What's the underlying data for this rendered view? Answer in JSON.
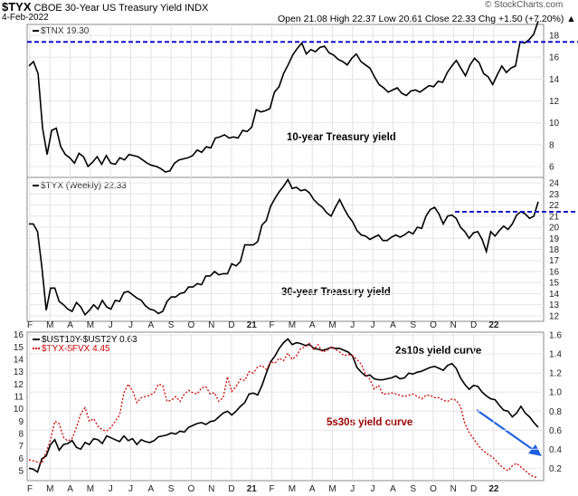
{
  "header": {
    "symbol": "$TYX",
    "name": "CBOE 30-Year US Treasury Yield INDX",
    "date": "4-Feb-2022",
    "ohlc": "Open 21.08  High 22.37  Low 20.61  Close 22.33  Chg +1.50 (+7.20%) ▲",
    "brand": "© StockCharts.com"
  },
  "colors": {
    "price": "#000000",
    "dashed": "#0000cc",
    "red": "#cc0000",
    "arrow": "#1f5fe0"
  },
  "x_axis": {
    "labels": [
      "F",
      "M",
      "A",
      "M",
      "J",
      "J",
      "A",
      "S",
      "O",
      "N",
      "D",
      "21",
      "F",
      "M",
      "A",
      "M",
      "J",
      "J",
      "A",
      "S",
      "O",
      "N",
      "D",
      "22"
    ]
  },
  "chart_data": [
    {
      "type": "line",
      "legend": "$TNX 19.30",
      "title": "10-year Treasury yield",
      "ylim": [
        5,
        19
      ],
      "yticks": [
        6,
        8,
        10,
        12,
        14,
        16,
        18
      ],
      "reference_line": 17.4,
      "series": [
        {
          "name": "$TNX",
          "values": [
            15.2,
            15.6,
            14.5,
            9.5,
            7.1,
            9.3,
            9.5,
            7.8,
            7.1,
            6.8,
            6.3,
            7.2,
            6.9,
            6.0,
            6.4,
            6.9,
            6.2,
            7.0,
            6.3,
            6.2,
            6.8,
            6.6,
            7.1,
            7.0,
            6.9,
            6.6,
            6.3,
            6.1,
            6.0,
            5.8,
            5.5,
            5.6,
            6.3,
            6.6,
            6.7,
            6.8,
            7.0,
            7.5,
            7.3,
            7.8,
            7.7,
            8.6,
            8.7,
            8.9,
            8.6,
            8.7,
            8.6,
            9.3,
            9.2,
            9.6,
            11.2,
            11.0,
            11.1,
            11.3,
            12.8,
            13.3,
            14.5,
            15.3,
            16.2,
            16.8,
            17.3,
            16.3,
            16.7,
            16.5,
            16.9,
            17.0,
            16.4,
            16.2,
            15.8,
            15.6,
            15.3,
            15.9,
            16.3,
            15.6,
            15.3,
            15.0,
            14.2,
            13.5,
            13.2,
            12.8,
            13.0,
            13.2,
            12.7,
            12.5,
            12.9,
            13.0,
            12.8,
            13.1,
            13.4,
            13.3,
            13.8,
            13.7,
            14.6,
            15.2,
            15.7,
            15.0,
            14.3,
            15.3,
            15.9,
            15.5,
            14.5,
            14.2,
            13.5,
            14.4,
            15.2,
            14.6,
            15.0,
            15.2,
            17.4,
            17.3,
            17.6,
            18.1,
            19.3
          ]
        }
      ]
    },
    {
      "type": "line",
      "legend": "$TYX (Weekly) 22.33",
      "title": "30-year Treasury yield",
      "ylim": [
        11.5,
        24.5
      ],
      "yticks": [
        12,
        13,
        14,
        15,
        16,
        17,
        18,
        19,
        20,
        21,
        22,
        23,
        24
      ],
      "reference_line": 21.4,
      "series": [
        {
          "name": "$TYX",
          "values": [
            20.3,
            20.3,
            19.6,
            16.4,
            12.5,
            14.5,
            14.5,
            13.3,
            13.0,
            12.6,
            12.4,
            13.2,
            12.8,
            12.1,
            12.5,
            13.0,
            12.6,
            13.4,
            12.8,
            12.6,
            13.4,
            13.3,
            14.1,
            14.2,
            13.9,
            13.6,
            13.4,
            12.9,
            12.6,
            12.5,
            12.2,
            12.4,
            13.3,
            13.7,
            13.7,
            14.0,
            14.1,
            14.6,
            14.6,
            14.9,
            14.8,
            15.6,
            15.6,
            16.0,
            15.7,
            15.8,
            15.8,
            16.7,
            16.5,
            16.9,
            18.4,
            18.4,
            18.4,
            18.7,
            20.2,
            20.6,
            21.9,
            22.6,
            23.2,
            23.7,
            24.3,
            23.5,
            23.6,
            23.3,
            23.4,
            23.1,
            22.5,
            22.1,
            21.8,
            21.3,
            21.0,
            21.8,
            22.5,
            21.7,
            21.0,
            20.5,
            19.7,
            19.3,
            19.2,
            18.9,
            19.1,
            19.3,
            18.8,
            18.8,
            19.1,
            19.3,
            19.1,
            19.3,
            19.6,
            19.4,
            20.0,
            19.9,
            21.0,
            21.6,
            21.8,
            21.2,
            20.3,
            21.0,
            21.1,
            20.8,
            20.0,
            19.6,
            19.0,
            19.5,
            19.6,
            18.9,
            17.8,
            19.6,
            19.2,
            19.7,
            20.1,
            19.8,
            20.3,
            21.1,
            21.4,
            21.2,
            20.8,
            21.0,
            22.3
          ]
        }
      ]
    },
    {
      "type": "line",
      "title": "2s10s yield curve",
      "subtitle": "5s30s yield curve",
      "left_ylim": [
        4.2,
        16.2
      ],
      "left_yticks": [
        5,
        6,
        7,
        8,
        9,
        10,
        11,
        12,
        13,
        14,
        15,
        16
      ],
      "right_ylim": [
        0.07,
        1.63
      ],
      "right_yticks": [
        "0.2",
        "0.4",
        "0.6",
        "0.8",
        "1.0",
        "1.2",
        "1.4",
        "1.6"
      ],
      "series": [
        {
          "name": "$UST10Y-$UST2Y 0.63",
          "axis": "right",
          "values": [
            0.2,
            0.19,
            0.16,
            0.3,
            0.33,
            0.45,
            0.5,
            0.39,
            0.45,
            0.46,
            0.49,
            0.42,
            0.4,
            0.47,
            0.45,
            0.51,
            0.5,
            0.46,
            0.54,
            0.52,
            0.5,
            0.48,
            0.54,
            0.49,
            0.51,
            0.45,
            0.5,
            0.48,
            0.47,
            0.49,
            0.53,
            0.54,
            0.55,
            0.57,
            0.56,
            0.59,
            0.58,
            0.63,
            0.65,
            0.67,
            0.68,
            0.66,
            0.69,
            0.7,
            0.74,
            0.78,
            0.8,
            0.76,
            0.8,
            0.85,
            0.89,
            0.98,
            0.99,
            0.97,
            1.07,
            1.2,
            1.32,
            1.38,
            1.46,
            1.52,
            1.56,
            1.5,
            1.52,
            1.51,
            1.49,
            1.5,
            1.46,
            1.45,
            1.44,
            1.45,
            1.47,
            1.46,
            1.46,
            1.44,
            1.42,
            1.38,
            1.26,
            1.21,
            1.17,
            1.18,
            1.14,
            1.13,
            1.13,
            1.14,
            1.15,
            1.17,
            1.14,
            1.15,
            1.2,
            1.19,
            1.21,
            1.22,
            1.24,
            1.26,
            1.27,
            1.25,
            1.23,
            1.28,
            1.3,
            1.25,
            1.15,
            1.08,
            1.03,
            1.07,
            1.06,
            1.0,
            0.96,
            0.93,
            0.92,
            0.86,
            0.81,
            0.8,
            0.74,
            0.78,
            0.85,
            0.78,
            0.74,
            0.68,
            0.63
          ]
        },
        {
          "name": "$TYX-$FVX 4.45",
          "axis": "left",
          "values": [
            5.9,
            5.8,
            5.7,
            5.6,
            6.5,
            7.5,
            9.0,
            8.8,
            7.7,
            7.4,
            7.6,
            8.5,
            9.6,
            10.1,
            9.0,
            9.2,
            8.6,
            8.3,
            8.2,
            8.5,
            9.0,
            9.5,
            11.3,
            12.0,
            11.5,
            10.5,
            10.9,
            11.0,
            11.1,
            11.3,
            12.0,
            11.9,
            10.6,
            10.7,
            11.0,
            10.6,
            11.2,
            11.5,
            11.3,
            11.2,
            11.7,
            11.8,
            11.2,
            11.3,
            10.6,
            10.9,
            12.6,
            11.4,
            11.8,
            12.4,
            12.3,
            13.0,
            12.9,
            13.4,
            13.5,
            13.2,
            13.8,
            13.7,
            14.1,
            13.9,
            14.5,
            14.0,
            14.3,
            14.9,
            15.0,
            15.3,
            14.8,
            15.2,
            14.6,
            14.7,
            15.0,
            14.8,
            14.6,
            14.3,
            14.4,
            14.3,
            14.0,
            13.6,
            12.8,
            12.4,
            11.6,
            11.9,
            11.2,
            11.2,
            11.3,
            11.2,
            11.1,
            11.0,
            11.1,
            11.2,
            11.0,
            10.8,
            11.1,
            11.1,
            10.9,
            10.9,
            10.7,
            10.6,
            10.8,
            10.7,
            10.2,
            8.8,
            8.1,
            7.6,
            7.1,
            6.7,
            6.4,
            6.2,
            5.9,
            5.5,
            5.2,
            5.0,
            5.4,
            5.6,
            5.3,
            5.0,
            4.7,
            4.5,
            4.45
          ]
        }
      ]
    }
  ]
}
